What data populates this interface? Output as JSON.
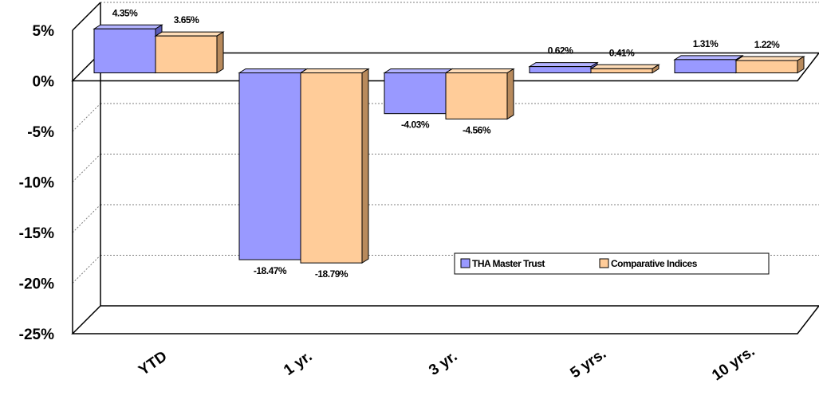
{
  "chart_data": {
    "type": "bar",
    "categories": [
      "YTD",
      "1 yr.",
      "3 yr.",
      "5 yrs.",
      "10 yrs."
    ],
    "series": [
      {
        "name": "THA Master Trust",
        "values": [
          4.35,
          -18.47,
          -4.03,
          0.62,
          1.31
        ],
        "labels": [
          "4.35%",
          "-18.47%",
          "-4.03%",
          "0.62%",
          "1.31%"
        ]
      },
      {
        "name": "Comparative Indices",
        "values": [
          3.65,
          -18.79,
          -4.56,
          0.41,
          1.22
        ],
        "labels": [
          "3.65%",
          "-18.79%",
          "-4.56%",
          "0.41%",
          "1.22%"
        ]
      }
    ],
    "y_ticks": [
      5,
      0,
      -5,
      -10,
      -15,
      -20,
      -25
    ],
    "y_tick_labels": [
      "5%",
      "0%",
      "-5%",
      "-10%",
      "-15%",
      "-20%",
      "-25%"
    ],
    "ylim": [
      -25,
      5
    ],
    "title": "",
    "xlabel": "",
    "ylabel": "",
    "legend_position": "bottom-right",
    "grid": true,
    "style": "3d-clustered-bar",
    "colors": {
      "series1_front": "#9999FF",
      "series1_side": "#5C5CB8",
      "series1_top": "#B3B3FF",
      "series2_front": "#FFCC99",
      "series2_side": "#B88A5C",
      "series2_top": "#FFDDB8",
      "grid": "#7F7F7F",
      "axis": "#000000"
    }
  }
}
